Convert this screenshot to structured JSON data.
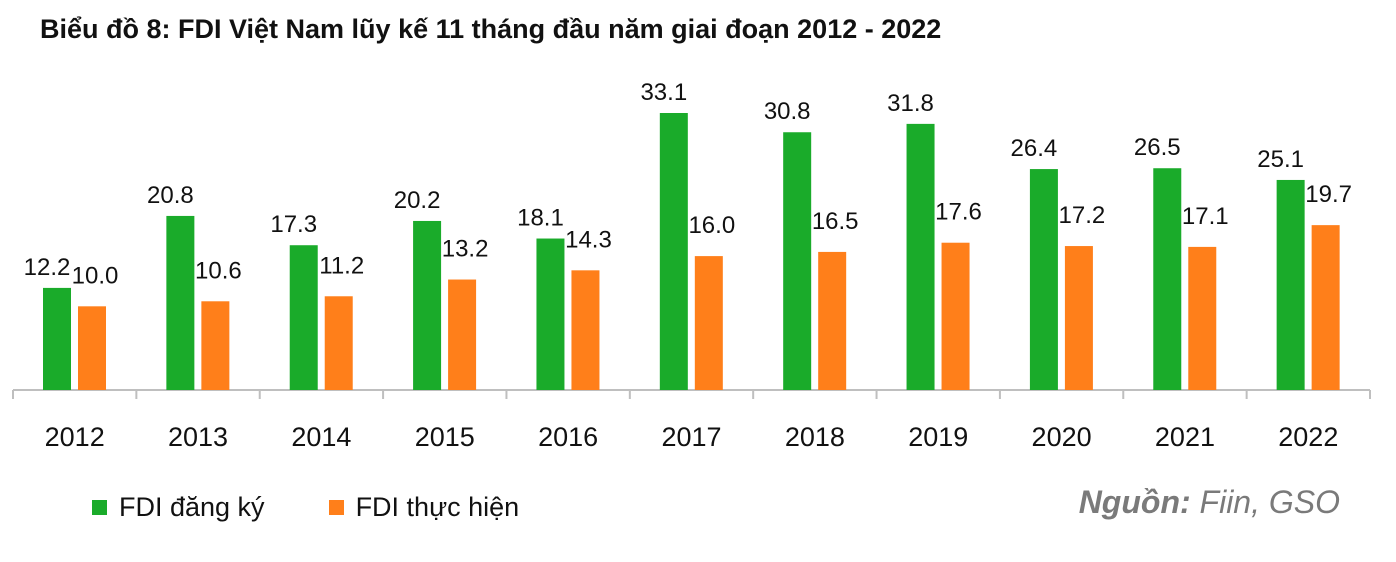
{
  "title": "Biểu đồ 8: FDI Việt Nam lũy kế 11 tháng đầu năm giai đoạn 2012 - 2022",
  "source": {
    "label": "Nguồn:",
    "text": " Fiin, GSO"
  },
  "colors": {
    "registered": "#1aab2a",
    "implemented": "#ff7f1a",
    "axis": "#bfbfbf"
  },
  "chart_data": {
    "type": "bar",
    "categories": [
      "2012",
      "2013",
      "2014",
      "2015",
      "2016",
      "2017",
      "2018",
      "2019",
      "2020",
      "2021",
      "2022"
    ],
    "series": [
      {
        "name": "FDI đăng ký",
        "values": [
          12.2,
          20.8,
          17.3,
          20.2,
          18.1,
          33.1,
          30.8,
          31.8,
          26.4,
          26.5,
          25.1
        ]
      },
      {
        "name": "FDI thực hiện",
        "values": [
          10.0,
          10.6,
          11.2,
          13.2,
          14.3,
          16.0,
          16.5,
          17.6,
          17.2,
          17.1,
          19.7
        ]
      }
    ],
    "ylim": [
      0,
      33.1
    ],
    "grid": false,
    "data_labels": true,
    "legend_position": "bottom-left"
  }
}
